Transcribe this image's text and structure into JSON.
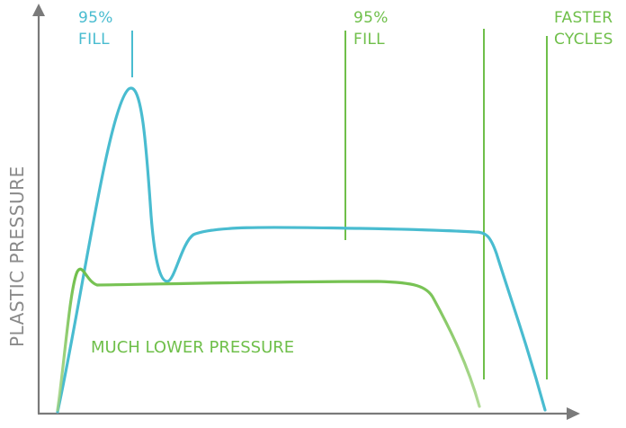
{
  "axes": {
    "y_label": "PLASTIC PRESSURE"
  },
  "annotations": {
    "blue_fill": {
      "line1": "95%",
      "line2": "FILL"
    },
    "green_fill": {
      "line1": "95%",
      "line2": "FILL"
    },
    "faster_cycles": {
      "line1": "FASTER",
      "line2": "CYCLES"
    },
    "much_lower_pressure": "MUCH LOWER PRESSURE"
  },
  "colors": {
    "blue_curve": "#49bcd0",
    "green_curve": "#6fbf4a",
    "axis": "#7a7a7a"
  }
}
